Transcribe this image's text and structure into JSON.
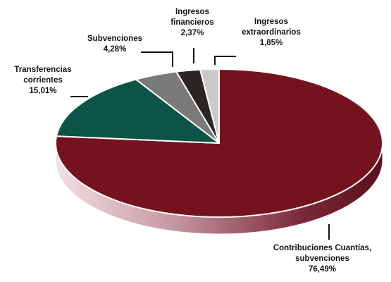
{
  "chart_data": {
    "type": "pie",
    "title": "",
    "slices": [
      {
        "label": "Contribuciones Cuantías, subvenciones",
        "value_label": "76,49%",
        "value": 76.49,
        "color": "#74131f"
      },
      {
        "label": "Transferencias corrientes",
        "value_label": "15,01%",
        "value": 15.01,
        "color": "#0c5348"
      },
      {
        "label": "Subvenciones",
        "value_label": "4,28%",
        "value": 4.28,
        "color": "#7a7a7a"
      },
      {
        "label": "Ingresos financieros",
        "value_label": "2,37%",
        "value": 2.37,
        "color": "#2b2623"
      },
      {
        "label": "Ingresos extraordinarios",
        "value_label": "1,85%",
        "value": 1.85,
        "color": "#c9c9c9"
      }
    ],
    "legend": "none",
    "three_d": true
  }
}
